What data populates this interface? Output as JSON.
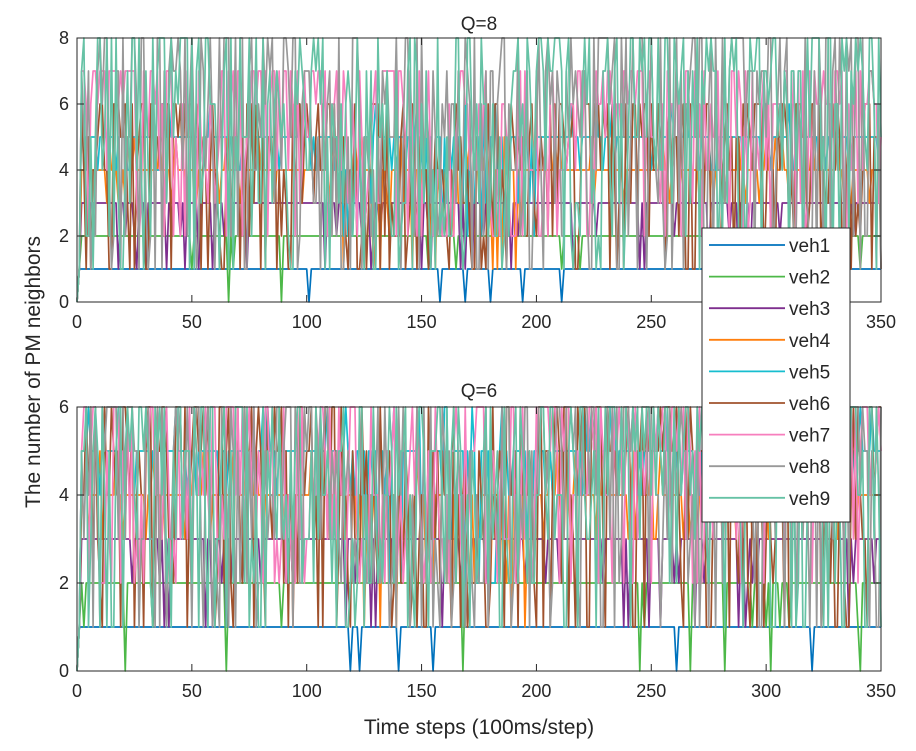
{
  "figure": {
    "ylabel": "The number of PM neighbors",
    "xlabel": "Time steps (100ms/step)"
  },
  "chart_data": [
    {
      "type": "line",
      "title": "Q=8",
      "xlabel": "",
      "ylabel": "The number of PM neighbors",
      "xlim": [
        0,
        350
      ],
      "ylim": [
        0,
        8
      ],
      "xticks": [
        0,
        50,
        100,
        150,
        200,
        250,
        300,
        350
      ],
      "yticks": [
        0,
        2,
        4,
        6,
        8
      ],
      "step": 1,
      "legend": {
        "placement": "right-middle",
        "entries": [
          "veh1",
          "veh2",
          "veh3",
          "veh4",
          "veh5",
          "veh6",
          "veh7",
          "veh8",
          "veh9"
        ]
      },
      "series": [
        {
          "name": "veh1",
          "color": "#0072BD",
          "base": 1,
          "noise": "dips",
          "dip_steps": [
            101,
            158,
            169,
            180,
            194,
            211
          ]
        },
        {
          "name": "veh2",
          "color": "#4DB848",
          "base": 2,
          "noise": "sparse-dips",
          "range": [
            0,
            2
          ]
        },
        {
          "name": "veh3",
          "color": "#7E2F8E",
          "base": 3,
          "noise": "dips",
          "range": [
            1,
            3
          ]
        },
        {
          "name": "veh4",
          "color": "#FF7F0E",
          "base": 4,
          "noise": "mixed",
          "range": [
            1,
            5
          ]
        },
        {
          "name": "veh5",
          "color": "#17BECF",
          "base": 5,
          "noise": "mixed",
          "range": [
            2,
            6
          ]
        },
        {
          "name": "veh6",
          "color": "#A0522D",
          "base": 6,
          "noise": "dense",
          "range": [
            1,
            6
          ]
        },
        {
          "name": "veh7",
          "color": "#F77FBE",
          "base": 7,
          "noise": "dense",
          "range": [
            2,
            7
          ]
        },
        {
          "name": "veh8",
          "color": "#999999",
          "base": 7,
          "noise": "dense",
          "range": [
            1,
            8
          ]
        },
        {
          "name": "veh9",
          "color": "#66C2A5",
          "base": 7,
          "noise": "dense",
          "range": [
            1,
            8
          ]
        }
      ]
    },
    {
      "type": "line",
      "title": "Q=6",
      "xlabel": "Time steps (100ms/step)",
      "ylabel": "The number of PM neighbors",
      "xlim": [
        0,
        350
      ],
      "ylim": [
        0,
        6
      ],
      "xticks": [
        0,
        50,
        100,
        150,
        200,
        250,
        300,
        350
      ],
      "yticks": [
        0,
        2,
        4,
        6
      ],
      "step": 1,
      "series": [
        {
          "name": "veh1",
          "color": "#0072BD",
          "base": 1,
          "noise": "dips",
          "dip_steps": [
            119,
            123,
            140,
            155,
            261,
            320
          ]
        },
        {
          "name": "veh2",
          "color": "#4DB848",
          "base": 2,
          "noise": "sparse-dips",
          "range": [
            0,
            2
          ]
        },
        {
          "name": "veh3",
          "color": "#7E2F8E",
          "base": 3,
          "noise": "dips",
          "range": [
            0,
            3
          ]
        },
        {
          "name": "veh4",
          "color": "#FF7F0E",
          "base": 4,
          "noise": "mixed",
          "range": [
            1,
            5
          ]
        },
        {
          "name": "veh5",
          "color": "#17BECF",
          "base": 5,
          "noise": "mixed",
          "range": [
            2,
            6
          ]
        },
        {
          "name": "veh6",
          "color": "#A0522D",
          "base": 5,
          "noise": "dense",
          "range": [
            1,
            6
          ]
        },
        {
          "name": "veh7",
          "color": "#F77FBE",
          "base": 5,
          "noise": "dense",
          "range": [
            2,
            6
          ]
        },
        {
          "name": "veh8",
          "color": "#999999",
          "base": 5,
          "noise": "dense",
          "range": [
            1,
            6
          ]
        },
        {
          "name": "veh9",
          "color": "#66C2A5",
          "base": 5,
          "noise": "dense",
          "range": [
            1,
            6
          ]
        }
      ]
    }
  ]
}
